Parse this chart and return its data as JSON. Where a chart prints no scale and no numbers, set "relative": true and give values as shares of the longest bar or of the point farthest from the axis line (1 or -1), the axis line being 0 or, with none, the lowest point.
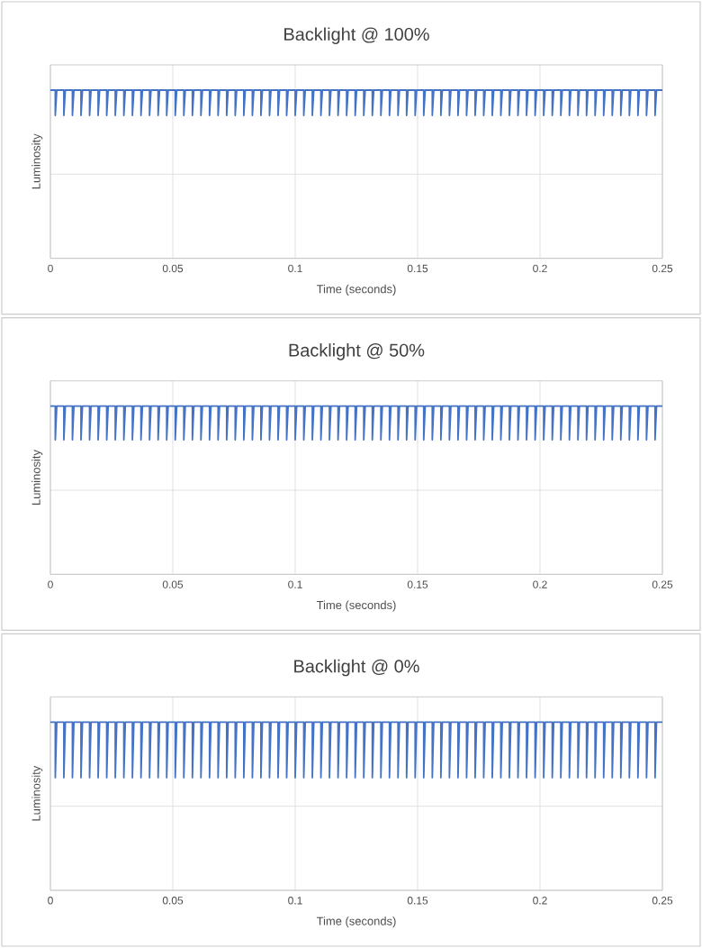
{
  "chart_data": [
    {
      "type": "line",
      "title": "Backlight @ 100%",
      "xlabel": "Time (seconds)",
      "ylabel": "Luminosity",
      "relative": true,
      "grid": true,
      "tick_labels": "x",
      "marker": "none",
      "xlim": [
        0,
        0.25
      ],
      "xticks": [
        0,
        0.05,
        0.1,
        0.15,
        0.2,
        0.25
      ],
      "x": [
        0,
        0.002,
        0.002,
        0.0026,
        0.0055,
        0.0055,
        0.0061,
        0.009,
        0.009,
        0.0096,
        0.0125,
        0.0125,
        0.0131,
        0.016,
        0.016,
        0.0166,
        0.0195,
        0.0195,
        0.0201,
        0.023,
        0.023,
        0.0236,
        0.0265,
        0.0265,
        0.0271,
        0.03,
        0.03,
        0.0306,
        0.0335,
        0.0335,
        0.0341,
        0.037,
        0.037,
        0.0376,
        0.0405,
        0.0405,
        0.0411,
        0.044,
        0.044,
        0.0446,
        0.0475,
        0.0475,
        0.0481,
        0.051,
        0.051,
        0.0516,
        0.0545,
        0.0545,
        0.0551,
        0.058,
        0.058,
        0.0586,
        0.0615,
        0.0615,
        0.0621,
        0.065,
        0.065,
        0.0656,
        0.0685,
        0.0685,
        0.0691,
        0.072,
        0.072,
        0.0726,
        0.0755,
        0.0755,
        0.0761,
        0.079,
        0.079,
        0.0796,
        0.0825,
        0.0825,
        0.0831,
        0.086,
        0.086,
        0.0866,
        0.0895,
        0.0895,
        0.0901,
        0.093,
        0.093,
        0.0936,
        0.0965,
        0.0965,
        0.0971,
        0.1,
        0.1,
        0.1006,
        0.1035,
        0.1035,
        0.1041,
        0.107,
        0.107,
        0.1076,
        0.1105,
        0.1105,
        0.1111,
        0.114,
        0.114,
        0.1146,
        0.1175,
        0.1175,
        0.1181,
        0.121,
        0.121,
        0.1216,
        0.1245,
        0.1245,
        0.1251,
        0.128,
        0.128,
        0.1286,
        0.1315,
        0.1315,
        0.1321,
        0.135,
        0.135,
        0.1356,
        0.1385,
        0.1385,
        0.1391,
        0.142,
        0.142,
        0.1426,
        0.1455,
        0.1455,
        0.1461,
        0.149,
        0.149,
        0.1496,
        0.1525,
        0.1525,
        0.1531,
        0.156,
        0.156,
        0.1566,
        0.1595,
        0.1595,
        0.1601,
        0.163,
        0.163,
        0.1636,
        0.1665,
        0.1665,
        0.1671,
        0.17,
        0.17,
        0.1706,
        0.1735,
        0.1735,
        0.1741,
        0.177,
        0.177,
        0.1776,
        0.1805,
        0.1805,
        0.1811,
        0.184,
        0.184,
        0.1846,
        0.1875,
        0.1875,
        0.1881,
        0.191,
        0.191,
        0.1916,
        0.1945,
        0.1945,
        0.1951,
        0.198,
        0.198,
        0.1986,
        0.2015,
        0.2015,
        0.2021,
        0.205,
        0.205,
        0.2056,
        0.2085,
        0.2085,
        0.2091,
        0.212,
        0.212,
        0.2126,
        0.2155,
        0.2155,
        0.2161,
        0.219,
        0.219,
        0.2196,
        0.2225,
        0.2225,
        0.2231,
        0.226,
        0.226,
        0.2266,
        0.2295,
        0.2295,
        0.2301,
        0.233,
        0.233,
        0.2336,
        0.2365,
        0.2365,
        0.2371,
        0.24,
        0.24,
        0.2406,
        0.2435,
        0.2435,
        0.2441,
        0.247,
        0.247,
        0.2476,
        0.25
      ],
      "series": [
        {
          "color": "#4472c4",
          "values": [
            1,
            1,
            0.85,
            1,
            1,
            0.85,
            1,
            1,
            0.85,
            1,
            1,
            0.85,
            1,
            1,
            0.85,
            1,
            1,
            0.85,
            1,
            1,
            0.85,
            1,
            1,
            0.85,
            1,
            1,
            0.85,
            1,
            1,
            0.85,
            1,
            1,
            0.85,
            1,
            1,
            0.85,
            1,
            1,
            0.85,
            1,
            1,
            0.85,
            1,
            1,
            0.85,
            1,
            1,
            0.85,
            1,
            1,
            0.85,
            1,
            1,
            0.85,
            1,
            1,
            0.85,
            1,
            1,
            0.85,
            1,
            1,
            0.85,
            1,
            1,
            0.85,
            1,
            1,
            0.85,
            1,
            1,
            0.85,
            1,
            1,
            0.85,
            1,
            1,
            0.85,
            1,
            1,
            0.85,
            1,
            1,
            0.85,
            1,
            1,
            0.85,
            1,
            1,
            0.85,
            1,
            1,
            0.85,
            1,
            1,
            0.85,
            1,
            1,
            0.85,
            1,
            1,
            0.85,
            1,
            1,
            0.85,
            1,
            1,
            0.85,
            1,
            1,
            0.85,
            1,
            1,
            0.85,
            1,
            1,
            0.85,
            1,
            1,
            0.85,
            1,
            1,
            0.85,
            1,
            1,
            0.85,
            1,
            1,
            0.85,
            1,
            1,
            0.85,
            1,
            1,
            0.85,
            1,
            1,
            0.85,
            1,
            1,
            0.85,
            1,
            1,
            0.85,
            1,
            1,
            0.85,
            1,
            1,
            0.85,
            1,
            1,
            0.85,
            1,
            1,
            0.85,
            1,
            1,
            0.85,
            1,
            1,
            0.85,
            1,
            1,
            0.85,
            1,
            1,
            0.85,
            1,
            1,
            0.85,
            1,
            1,
            0.85,
            1,
            1,
            0.85,
            1,
            1,
            0.85,
            1,
            1,
            0.85,
            1,
            1,
            0.85,
            1,
            1,
            0.85,
            1,
            1,
            0.85,
            1,
            1,
            0.85,
            1,
            1,
            0.85,
            1,
            1,
            0.85,
            1,
            1,
            0.85,
            1,
            1,
            0.85,
            1,
            1,
            0.85,
            1,
            1,
            0.85,
            1,
            1
          ]
        }
      ]
    },
    {
      "type": "line",
      "title": "Backlight @ 50%",
      "xlabel": "Time (seconds)",
      "ylabel": "Luminosity",
      "relative": true,
      "grid": true,
      "tick_labels": "x",
      "marker": "none",
      "xlim": [
        0,
        0.25
      ],
      "xticks": [
        0,
        0.05,
        0.1,
        0.15,
        0.2,
        0.25
      ],
      "x": [
        0,
        0.002,
        0.002,
        0.0026,
        0.0055,
        0.0055,
        0.0061,
        0.009,
        0.009,
        0.0096,
        0.0125,
        0.0125,
        0.0131,
        0.016,
        0.016,
        0.0166,
        0.0195,
        0.0195,
        0.0201,
        0.023,
        0.023,
        0.0236,
        0.0265,
        0.0265,
        0.0271,
        0.03,
        0.03,
        0.0306,
        0.0335,
        0.0335,
        0.0341,
        0.037,
        0.037,
        0.0376,
        0.0405,
        0.0405,
        0.0411,
        0.044,
        0.044,
        0.0446,
        0.0475,
        0.0475,
        0.0481,
        0.051,
        0.051,
        0.0516,
        0.0545,
        0.0545,
        0.0551,
        0.058,
        0.058,
        0.0586,
        0.0615,
        0.0615,
        0.0621,
        0.065,
        0.065,
        0.0656,
        0.0685,
        0.0685,
        0.0691,
        0.072,
        0.072,
        0.0726,
        0.0755,
        0.0755,
        0.0761,
        0.079,
        0.079,
        0.0796,
        0.0825,
        0.0825,
        0.0831,
        0.086,
        0.086,
        0.0866,
        0.0895,
        0.0895,
        0.0901,
        0.093,
        0.093,
        0.0936,
        0.0965,
        0.0965,
        0.0971,
        0.1,
        0.1,
        0.1006,
        0.1035,
        0.1035,
        0.1041,
        0.107,
        0.107,
        0.1076,
        0.1105,
        0.1105,
        0.1111,
        0.114,
        0.114,
        0.1146,
        0.1175,
        0.1175,
        0.1181,
        0.121,
        0.121,
        0.1216,
        0.1245,
        0.1245,
        0.1251,
        0.128,
        0.128,
        0.1286,
        0.1315,
        0.1315,
        0.1321,
        0.135,
        0.135,
        0.1356,
        0.1385,
        0.1385,
        0.1391,
        0.142,
        0.142,
        0.1426,
        0.1455,
        0.1455,
        0.1461,
        0.149,
        0.149,
        0.1496,
        0.1525,
        0.1525,
        0.1531,
        0.156,
        0.156,
        0.1566,
        0.1595,
        0.1595,
        0.1601,
        0.163,
        0.163,
        0.1636,
        0.1665,
        0.1665,
        0.1671,
        0.17,
        0.17,
        0.1706,
        0.1735,
        0.1735,
        0.1741,
        0.177,
        0.177,
        0.1776,
        0.1805,
        0.1805,
        0.1811,
        0.184,
        0.184,
        0.1846,
        0.1875,
        0.1875,
        0.1881,
        0.191,
        0.191,
        0.1916,
        0.1945,
        0.1945,
        0.1951,
        0.198,
        0.198,
        0.1986,
        0.2015,
        0.2015,
        0.2021,
        0.205,
        0.205,
        0.2056,
        0.2085,
        0.2085,
        0.2091,
        0.212,
        0.212,
        0.2126,
        0.2155,
        0.2155,
        0.2161,
        0.219,
        0.219,
        0.2196,
        0.2225,
        0.2225,
        0.2231,
        0.226,
        0.226,
        0.2266,
        0.2295,
        0.2295,
        0.2301,
        0.233,
        0.233,
        0.2336,
        0.2365,
        0.2365,
        0.2371,
        0.24,
        0.24,
        0.2406,
        0.2435,
        0.2435,
        0.2441,
        0.247,
        0.247,
        0.2476,
        0.25
      ],
      "series": [
        {
          "color": "#4472c4",
          "values": [
            1,
            1,
            0.8,
            1,
            1,
            0.8,
            1,
            1,
            0.8,
            1,
            1,
            0.8,
            1,
            1,
            0.8,
            1,
            1,
            0.8,
            1,
            1,
            0.8,
            1,
            1,
            0.8,
            1,
            1,
            0.8,
            1,
            1,
            0.8,
            1,
            1,
            0.8,
            1,
            1,
            0.8,
            1,
            1,
            0.8,
            1,
            1,
            0.8,
            1,
            1,
            0.8,
            1,
            1,
            0.8,
            1,
            1,
            0.8,
            1,
            1,
            0.8,
            1,
            1,
            0.8,
            1,
            1,
            0.8,
            1,
            1,
            0.8,
            1,
            1,
            0.8,
            1,
            1,
            0.8,
            1,
            1,
            0.8,
            1,
            1,
            0.8,
            1,
            1,
            0.8,
            1,
            1,
            0.8,
            1,
            1,
            0.8,
            1,
            1,
            0.8,
            1,
            1,
            0.8,
            1,
            1,
            0.8,
            1,
            1,
            0.8,
            1,
            1,
            0.8,
            1,
            1,
            0.8,
            1,
            1,
            0.8,
            1,
            1,
            0.8,
            1,
            1,
            0.8,
            1,
            1,
            0.8,
            1,
            1,
            0.8,
            1,
            1,
            0.8,
            1,
            1,
            0.8,
            1,
            1,
            0.8,
            1,
            1,
            0.8,
            1,
            1,
            0.8,
            1,
            1,
            0.8,
            1,
            1,
            0.8,
            1,
            1,
            0.8,
            1,
            1,
            0.8,
            1,
            1,
            0.8,
            1,
            1,
            0.8,
            1,
            1,
            0.8,
            1,
            1,
            0.8,
            1,
            1,
            0.8,
            1,
            1,
            0.8,
            1,
            1,
            0.8,
            1,
            1,
            0.8,
            1,
            1,
            0.8,
            1,
            1,
            0.8,
            1,
            1,
            0.8,
            1,
            1,
            0.8,
            1,
            1,
            0.8,
            1,
            1,
            0.8,
            1,
            1,
            0.8,
            1,
            1,
            0.8,
            1,
            1,
            0.8,
            1,
            1,
            0.8,
            1,
            1,
            0.8,
            1,
            1,
            0.8,
            1,
            1,
            0.8,
            1,
            1,
            0.8,
            1,
            1,
            0.8,
            1,
            1
          ]
        }
      ]
    },
    {
      "type": "line",
      "title": "Backlight @ 0%",
      "xlabel": "Time (seconds)",
      "ylabel": "Luminosity",
      "relative": true,
      "grid": true,
      "tick_labels": "x",
      "marker": "none",
      "xlim": [
        0,
        0.25
      ],
      "xticks": [
        0,
        0.05,
        0.1,
        0.15,
        0.2,
        0.25
      ],
      "x": [
        0,
        0.002,
        0.002,
        0.0026,
        0.0055,
        0.0055,
        0.0061,
        0.009,
        0.009,
        0.0096,
        0.0125,
        0.0125,
        0.0131,
        0.016,
        0.016,
        0.0166,
        0.0195,
        0.0195,
        0.0201,
        0.023,
        0.023,
        0.0236,
        0.0265,
        0.0265,
        0.0271,
        0.03,
        0.03,
        0.0306,
        0.0335,
        0.0335,
        0.0341,
        0.037,
        0.037,
        0.0376,
        0.0405,
        0.0405,
        0.0411,
        0.044,
        0.044,
        0.0446,
        0.0475,
        0.0475,
        0.0481,
        0.051,
        0.051,
        0.0516,
        0.0545,
        0.0545,
        0.0551,
        0.058,
        0.058,
        0.0586,
        0.0615,
        0.0615,
        0.0621,
        0.065,
        0.065,
        0.0656,
        0.0685,
        0.0685,
        0.0691,
        0.072,
        0.072,
        0.0726,
        0.0755,
        0.0755,
        0.0761,
        0.079,
        0.079,
        0.0796,
        0.0825,
        0.0825,
        0.0831,
        0.086,
        0.086,
        0.0866,
        0.0895,
        0.0895,
        0.0901,
        0.093,
        0.093,
        0.0936,
        0.0965,
        0.0965,
        0.0971,
        0.1,
        0.1,
        0.1006,
        0.1035,
        0.1035,
        0.1041,
        0.107,
        0.107,
        0.1076,
        0.1105,
        0.1105,
        0.1111,
        0.114,
        0.114,
        0.1146,
        0.1175,
        0.1175,
        0.1181,
        0.121,
        0.121,
        0.1216,
        0.1245,
        0.1245,
        0.1251,
        0.128,
        0.128,
        0.1286,
        0.1315,
        0.1315,
        0.1321,
        0.135,
        0.135,
        0.1356,
        0.1385,
        0.1385,
        0.1391,
        0.142,
        0.142,
        0.1426,
        0.1455,
        0.1455,
        0.1461,
        0.149,
        0.149,
        0.1496,
        0.1525,
        0.1525,
        0.1531,
        0.156,
        0.156,
        0.1566,
        0.1595,
        0.1595,
        0.1601,
        0.163,
        0.163,
        0.1636,
        0.1665,
        0.1665,
        0.1671,
        0.17,
        0.17,
        0.1706,
        0.1735,
        0.1735,
        0.1741,
        0.177,
        0.177,
        0.1776,
        0.1805,
        0.1805,
        0.1811,
        0.184,
        0.184,
        0.1846,
        0.1875,
        0.1875,
        0.1881,
        0.191,
        0.191,
        0.1916,
        0.1945,
        0.1945,
        0.1951,
        0.198,
        0.198,
        0.1986,
        0.2015,
        0.2015,
        0.2021,
        0.205,
        0.205,
        0.2056,
        0.2085,
        0.2085,
        0.2091,
        0.212,
        0.212,
        0.2126,
        0.2155,
        0.2155,
        0.2161,
        0.219,
        0.219,
        0.2196,
        0.2225,
        0.2225,
        0.2231,
        0.226,
        0.226,
        0.2266,
        0.2295,
        0.2295,
        0.2301,
        0.233,
        0.233,
        0.2336,
        0.2365,
        0.2365,
        0.2371,
        0.24,
        0.24,
        0.2406,
        0.2435,
        0.2435,
        0.2441,
        0.247,
        0.247,
        0.2476,
        0.25
      ],
      "series": [
        {
          "color": "#4472c4",
          "values": [
            1,
            1,
            0.67,
            1,
            1,
            0.67,
            1,
            1,
            0.67,
            1,
            1,
            0.67,
            1,
            1,
            0.67,
            1,
            1,
            0.67,
            1,
            1,
            0.67,
            1,
            1,
            0.67,
            1,
            1,
            0.67,
            1,
            1,
            0.67,
            1,
            1,
            0.67,
            1,
            1,
            0.67,
            1,
            1,
            0.67,
            1,
            1,
            0.67,
            1,
            1,
            0.67,
            1,
            1,
            0.67,
            1,
            1,
            0.67,
            1,
            1,
            0.67,
            1,
            1,
            0.67,
            1,
            1,
            0.67,
            1,
            1,
            0.67,
            1,
            1,
            0.67,
            1,
            1,
            0.67,
            1,
            1,
            0.67,
            1,
            1,
            0.67,
            1,
            1,
            0.67,
            1,
            1,
            0.67,
            1,
            1,
            0.67,
            1,
            1,
            0.67,
            1,
            1,
            0.67,
            1,
            1,
            0.67,
            1,
            1,
            0.67,
            1,
            1,
            0.67,
            1,
            1,
            0.67,
            1,
            1,
            0.67,
            1,
            1,
            0.67,
            1,
            1,
            0.67,
            1,
            1,
            0.67,
            1,
            1,
            0.67,
            1,
            1,
            0.67,
            1,
            1,
            0.67,
            1,
            1,
            0.67,
            1,
            1,
            0.67,
            1,
            1,
            0.67,
            1,
            1,
            0.67,
            1,
            1,
            0.67,
            1,
            1,
            0.67,
            1,
            1,
            0.67,
            1,
            1,
            0.67,
            1,
            1,
            0.67,
            1,
            1,
            0.67,
            1,
            1,
            0.67,
            1,
            1,
            0.67,
            1,
            1,
            0.67,
            1,
            1,
            0.67,
            1,
            1,
            0.67,
            1,
            1,
            0.67,
            1,
            1,
            0.67,
            1,
            1,
            0.67,
            1,
            1,
            0.67,
            1,
            1,
            0.67,
            1,
            1,
            0.67,
            1,
            1,
            0.67,
            1,
            1,
            0.67,
            1,
            1,
            0.67,
            1,
            1,
            0.67,
            1,
            1,
            0.67,
            1,
            1,
            0.67,
            1,
            1,
            0.67,
            1,
            1,
            0.67,
            1,
            1,
            0.67,
            1,
            1
          ]
        }
      ]
    }
  ]
}
